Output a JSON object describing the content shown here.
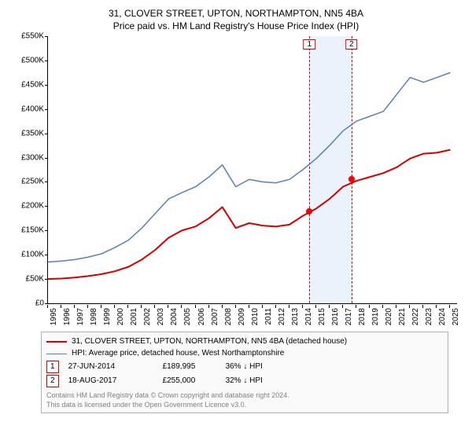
{
  "chart": {
    "type": "line",
    "title_line1": "31, CLOVER STREET, UPTON, NORTHAMPTON, NN5 4BA",
    "title_line2": "Price paid vs. HM Land Registry's House Price Index (HPI)",
    "title_fontsize": 12,
    "label_fontsize": 10,
    "background_color": "#ffffff",
    "axis_color": "#000000",
    "grid_color": "#c0c0c0",
    "shade_color": "#eaf2fb",
    "x_years": [
      1995,
      1996,
      1997,
      1998,
      1999,
      2000,
      2001,
      2002,
      2003,
      2004,
      2005,
      2006,
      2007,
      2008,
      2009,
      2010,
      2011,
      2012,
      2013,
      2014,
      2015,
      2016,
      2017,
      2018,
      2019,
      2020,
      2021,
      2022,
      2023,
      2024,
      2025
    ],
    "xlim": [
      1995,
      2025.5
    ],
    "y_ticks": [
      0,
      50000,
      100000,
      150000,
      200000,
      250000,
      300000,
      350000,
      400000,
      450000,
      500000,
      550000
    ],
    "y_tick_labels": [
      "£0",
      "£50K",
      "£100K",
      "£150K",
      "£200K",
      "£250K",
      "£300K",
      "£350K",
      "£400K",
      "£450K",
      "£500K",
      "£550K"
    ],
    "ylim": [
      0,
      550000
    ],
    "series": [
      {
        "name": "property",
        "color": "#d40000",
        "width": 2,
        "legend": "31, CLOVER STREET, UPTON, NORTHAMPTON, NN5 4BA (detached house)",
        "y": [
          50000,
          51000,
          53000,
          56000,
          60000,
          66000,
          75000,
          90000,
          110000,
          135000,
          150000,
          158000,
          175000,
          198000,
          155000,
          165000,
          160000,
          158000,
          162000,
          180000,
          195000,
          215000,
          240000,
          252000,
          260000,
          268000,
          280000,
          298000,
          308000,
          310000,
          316000
        ]
      },
      {
        "name": "hpi",
        "color": "#5a7fb8",
        "width": 1.5,
        "legend": "HPI: Average price, detached house, West Northamptonshire",
        "y": [
          85000,
          87000,
          90000,
          95000,
          102000,
          115000,
          130000,
          155000,
          185000,
          215000,
          228000,
          240000,
          260000,
          285000,
          240000,
          255000,
          250000,
          248000,
          255000,
          275000,
          298000,
          325000,
          355000,
          375000,
          385000,
          395000,
          430000,
          465000,
          455000,
          465000,
          475000
        ]
      }
    ],
    "sale_events": [
      {
        "tag": "1",
        "color": "#d40000",
        "x": 2014.49,
        "date": "27-JUN-2014",
        "price": 189995,
        "price_label": "£189,995",
        "diff_label": "36% ↓ HPI"
      },
      {
        "tag": "2",
        "color": "#d40000",
        "x": 2017.63,
        "date": "18-AUG-2017",
        "price": 255000,
        "price_label": "£255,000",
        "diff_label": "32% ↓ HPI"
      }
    ]
  },
  "footer": {
    "line1": "Contains HM Land Registry data © Crown copyright and database right 2024.",
    "line2": "This data is licensed under the Open Government Licence v3.0."
  }
}
